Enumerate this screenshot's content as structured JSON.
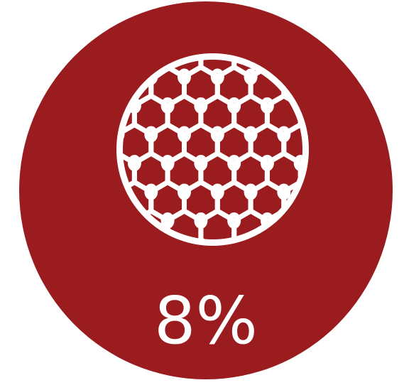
{
  "stat": {
    "value": "8%",
    "icon": "mesh-fabric-icon",
    "background_color": "#9b1c1f",
    "foreground_color": "#ffffff"
  }
}
